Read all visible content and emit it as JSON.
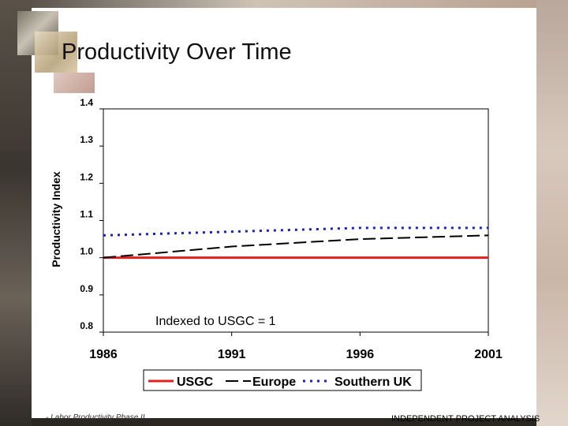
{
  "title": "Productivity Over Time",
  "footer": {
    "left": "- Labor Productivity Phase II",
    "right": "INDEPENDENT PROJECT ANALYSIS"
  },
  "chart_data": {
    "type": "line",
    "ylabel": "Productivity Index",
    "x": [
      1986,
      1991,
      1996,
      2001
    ],
    "xlim": [
      1986,
      2001
    ],
    "ylim": [
      0.8,
      1.4
    ],
    "y_ticks": [
      "0.8",
      "0.9",
      "1.0",
      "1.1",
      "1.2",
      "1.3",
      "1.4"
    ],
    "x_ticks": [
      "1986",
      "1991",
      "1996",
      "2001"
    ],
    "annotation": "Indexed to USGC = 1",
    "grid": false,
    "legend_position": "bottom",
    "series": [
      {
        "name": "USGC",
        "values": [
          1.0,
          1.0,
          1.0,
          1.0
        ],
        "color": "#e3201b",
        "style": "solid"
      },
      {
        "name": "Europe",
        "values": [
          1.0,
          1.03,
          1.05,
          1.06
        ],
        "color": "#000000",
        "style": "dashed"
      },
      {
        "name": "Southern UK",
        "values": [
          1.06,
          1.07,
          1.08,
          1.08
        ],
        "color": "#1a24b8",
        "style": "dotted"
      }
    ]
  }
}
